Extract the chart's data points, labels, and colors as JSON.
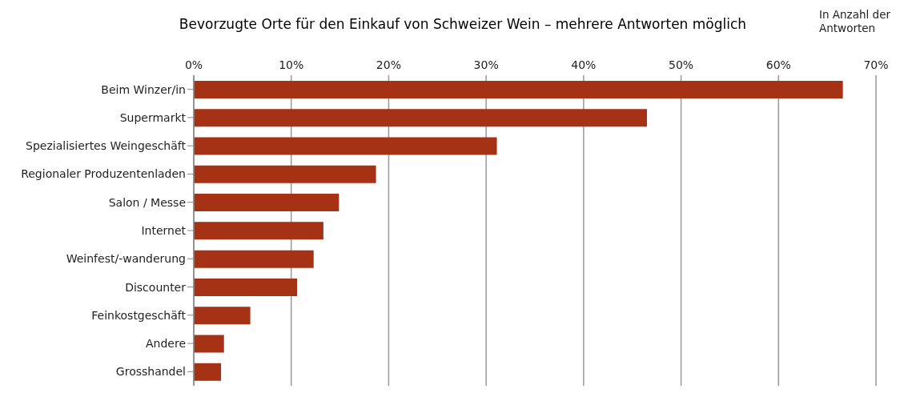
{
  "chart_data": {
    "type": "bar",
    "orientation": "horizontal",
    "title": "Bevorzugte Orte für den Einkauf von Schweizer Wein – mehrere Antworten möglich",
    "annotations": [
      "In Anzahl der Antworten"
    ],
    "categories": [
      "Beim Winzer/in",
      "Supermarkt",
      "Spezialisiertes Weingeschäft",
      "Regionaler Produzentenladen",
      "Salon / Messe",
      "Internet",
      "Weinfest/-wanderung",
      "Discounter",
      "Feinkostgeschäft",
      "Andere",
      "Grosshandel"
    ],
    "values": [
      66.6,
      46.5,
      31.1,
      18.7,
      14.9,
      13.3,
      12.3,
      10.6,
      5.8,
      3.1,
      2.8
    ],
    "color": "#a53214",
    "xlim": [
      0,
      70
    ],
    "xticks": [
      {
        "value": 0,
        "label": "0%"
      },
      {
        "value": 10,
        "label": "10%"
      },
      {
        "value": 20,
        "label": "20%"
      },
      {
        "value": 30,
        "label": "30%"
      },
      {
        "value": 40,
        "label": "40%"
      },
      {
        "value": 50,
        "label": "50%"
      },
      {
        "value": 60,
        "label": "60%"
      },
      {
        "value": 70,
        "label": "70%"
      }
    ],
    "grid": "x",
    "legend": false
  }
}
